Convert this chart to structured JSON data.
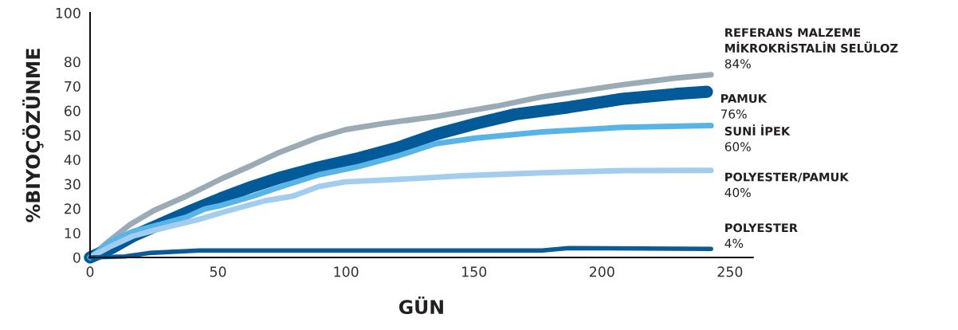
{
  "chart_data": {
    "type": "line",
    "xlabel": "GÜN",
    "ylabel": "%BIYOÇÖZÜNME",
    "xlim": [
      0,
      259
    ],
    "xticks": [
      0,
      50,
      100,
      150,
      200,
      250
    ],
    "ylim": [
      0,
      100
    ],
    "yticks": [
      0,
      10,
      20,
      30,
      40,
      50,
      60,
      70,
      80,
      100
    ],
    "grid": false,
    "legend": false,
    "marker": "none",
    "line_style": "solid",
    "annotations": [
      "84%",
      "76%",
      "60%",
      "40%",
      "4%"
    ],
    "series": [
      {
        "name": "REFERANS MALZEME\nMİKROKRİSTALİN SELÜLOZ",
        "color": "#9aabb5",
        "x": [
          0,
          7.4,
          15.6,
          25,
          37.5,
          51,
          63.5,
          73,
          88.5,
          100,
          114.3,
          135,
          159,
          176.6,
          207.8,
          228.6,
          242.6
        ],
        "values": [
          0,
          6.7,
          13.4,
          19.2,
          25,
          32,
          37.8,
          42.5,
          48.8,
          52.3,
          54.7,
          57.6,
          61.9,
          65.7,
          70.6,
          73.3,
          74.7
        ]
      },
      {
        "name": "PAMUK",
        "color": "#035a98",
        "x": [
          0,
          8.4,
          16.7,
          27,
          39.6,
          51,
          63.5,
          74.8,
          87.3,
          105,
          120.6,
          135,
          150.7,
          166,
          187,
          207.8,
          228.6,
          241
        ],
        "values": [
          0,
          3.8,
          8.7,
          13.4,
          19.2,
          24.1,
          29,
          32.8,
          36.3,
          40.6,
          45,
          50.3,
          54.7,
          58.5,
          61.4,
          64.8,
          66.8,
          67.7
        ]
      },
      {
        "name": "SUNİ İPEK",
        "color": "#58b4e6",
        "x": [
          0,
          8.4,
          16.7,
          27,
          37.5,
          44.8,
          51,
          63.5,
          74.8,
          89.4,
          105,
          120.6,
          135,
          150.7,
          176.6,
          207.8,
          242.6
        ],
        "values": [
          0,
          6.7,
          10.6,
          13.4,
          16.4,
          19.8,
          21.2,
          25,
          29,
          33.8,
          37.2,
          41.6,
          46.5,
          48.8,
          51.3,
          53.2,
          53.9
        ]
      },
      {
        "name": "POLYESTER/PAMUK",
        "color": "#a3cdee",
        "x": [
          0,
          8.4,
          16.7,
          27,
          42,
          53,
          68.5,
          79,
          89.4,
          99.7,
          120.6,
          145.5,
          176.6,
          207.8,
          242.6
        ],
        "values": [
          0,
          4.7,
          8.7,
          11.6,
          15.4,
          18.8,
          23.2,
          25,
          29,
          30.9,
          31.9,
          33.4,
          34.6,
          35.5,
          35.6
        ]
      },
      {
        "name": "POLYESTER",
        "color": "#0a5b97",
        "x": [
          0,
          13.6,
          23,
          42.7,
          68.5,
          114,
          176.6,
          187,
          242.6
        ],
        "values": [
          0,
          0.4,
          1.8,
          2.8,
          2.8,
          2.8,
          2.8,
          3.8,
          3.5
        ]
      }
    ]
  }
}
